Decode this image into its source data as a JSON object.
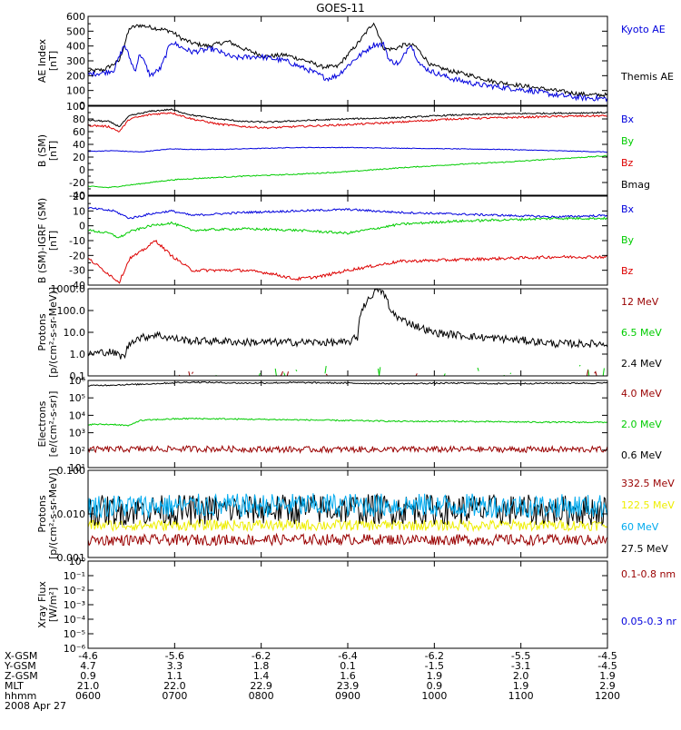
{
  "title": "GOES-11",
  "colors": {
    "black": "#000000",
    "blue": "#0000dd",
    "red": "#dd0000",
    "green": "#00cc00",
    "darkred": "#990000",
    "cyan": "#00aaee",
    "yellow": "#eeee00"
  },
  "chart_data": [
    {
      "type": "line",
      "ylabel": "AE Index\n[nT]",
      "ylim": [
        0,
        600
      ],
      "yticks": [
        0,
        100,
        200,
        300,
        400,
        500,
        600
      ],
      "yticklabels": [
        "0",
        "100",
        "200",
        "300",
        "400",
        "500",
        "600"
      ],
      "legend": [
        {
          "text": "Kyoto AE",
          "color": "blue"
        },
        {
          "text": "Themis AE",
          "color": "black"
        }
      ],
      "series": [
        {
          "name": "Themis AE",
          "color": "black",
          "noise": 14,
          "x": [
            0,
            3,
            6,
            8,
            10,
            13,
            16,
            18,
            20,
            23,
            27,
            30,
            34,
            38,
            42,
            45,
            48,
            52,
            55,
            57,
            59,
            61,
            63,
            66,
            70,
            74,
            78,
            82,
            86,
            90,
            94,
            97,
            100
          ],
          "y": [
            230,
            240,
            300,
            520,
            540,
            520,
            500,
            450,
            420,
            400,
            430,
            380,
            330,
            340,
            300,
            260,
            260,
            420,
            560,
            380,
            380,
            410,
            400,
            270,
            230,
            200,
            160,
            140,
            120,
            100,
            80,
            70,
            70
          ]
        },
        {
          "name": "Kyoto AE",
          "color": "blue",
          "noise": 18,
          "x": [
            0,
            3,
            5,
            7,
            9,
            10,
            12,
            14,
            16,
            18,
            20,
            24,
            28,
            33,
            38,
            43,
            46,
            48,
            51,
            55,
            57,
            58,
            60,
            62,
            64,
            66,
            70,
            75,
            80,
            85,
            90,
            95,
            100
          ],
          "y": [
            210,
            220,
            240,
            410,
            230,
            350,
            200,
            250,
            430,
            390,
            360,
            380,
            320,
            330,
            300,
            230,
            180,
            200,
            300,
            410,
            410,
            300,
            280,
            420,
            270,
            230,
            180,
            140,
            120,
            100,
            70,
            50,
            45
          ]
        }
      ]
    },
    {
      "type": "line",
      "ylabel": "B (SM)\n[nT]",
      "ylim": [
        -40,
        100
      ],
      "yticks": [
        -40,
        -20,
        0,
        20,
        40,
        60,
        80,
        100
      ],
      "yticklabels": [
        "-40",
        "-20",
        "0",
        "20",
        "40",
        "60",
        "80",
        "100"
      ],
      "legend": [
        {
          "text": "Bx",
          "color": "blue"
        },
        {
          "text": "By",
          "color": "green"
        },
        {
          "text": "Bz",
          "color": "red"
        },
        {
          "text": "Bmag",
          "color": "black"
        }
      ],
      "series": [
        {
          "name": "Bx",
          "color": "blue",
          "noise": 0.5,
          "x": [
            0,
            5,
            10,
            16,
            20,
            25,
            30,
            40,
            50,
            60,
            70,
            80,
            90,
            100
          ],
          "y": [
            29,
            30,
            28,
            33,
            32,
            32,
            33,
            35,
            35,
            34,
            33,
            32,
            30,
            28
          ]
        },
        {
          "name": "By",
          "color": "green",
          "noise": 0.8,
          "x": [
            0,
            4,
            8,
            12,
            16,
            20,
            30,
            40,
            50,
            60,
            70,
            80,
            90,
            100
          ],
          "y": [
            -26,
            -28,
            -24,
            -20,
            -16,
            -14,
            -10,
            -7,
            -3,
            3,
            8,
            12,
            17,
            22
          ]
        },
        {
          "name": "Bz",
          "color": "red",
          "noise": 1.5,
          "x": [
            0,
            4,
            6,
            8,
            12,
            16,
            20,
            25,
            30,
            35,
            40,
            50,
            60,
            70,
            80,
            90,
            100
          ],
          "y": [
            70,
            68,
            60,
            80,
            87,
            90,
            80,
            72,
            68,
            66,
            68,
            71,
            75,
            80,
            82,
            84,
            85
          ]
        },
        {
          "name": "Bmag",
          "color": "black",
          "noise": 1.2,
          "x": [
            0,
            4,
            6,
            8,
            12,
            16,
            20,
            25,
            30,
            35,
            40,
            50,
            60,
            70,
            80,
            90,
            100
          ],
          "y": [
            78,
            76,
            68,
            85,
            92,
            95,
            86,
            80,
            76,
            75,
            77,
            80,
            82,
            86,
            88,
            89,
            90
          ]
        }
      ]
    },
    {
      "type": "line",
      "ylabel": "B (SM)-IGRF (SM)\n[nT]",
      "ylim": [
        -40,
        20
      ],
      "yticks": [
        -40,
        -30,
        -20,
        -10,
        0,
        10,
        20
      ],
      "yticklabels": [
        "-40",
        "-30",
        "-20",
        "-10",
        "0",
        "10",
        "20"
      ],
      "legend": [
        {
          "text": "Bx",
          "color": "blue"
        },
        {
          "text": "By",
          "color": "green"
        },
        {
          "text": "Bz",
          "color": "red"
        }
      ],
      "series": [
        {
          "name": "Bx",
          "color": "blue",
          "noise": 0.7,
          "x": [
            0,
            5,
            8,
            12,
            16,
            20,
            30,
            40,
            50,
            55,
            60,
            70,
            80,
            90,
            100
          ],
          "y": [
            12,
            10,
            5,
            8,
            10,
            7,
            9,
            10,
            11,
            10,
            9,
            8,
            7,
            6,
            7
          ]
        },
        {
          "name": "By",
          "color": "green",
          "noise": 0.8,
          "x": [
            0,
            4,
            6,
            8,
            12,
            16,
            20,
            30,
            40,
            50,
            55,
            60,
            70,
            80,
            90,
            100
          ],
          "y": [
            -3,
            -5,
            -8,
            -4,
            0,
            2,
            -3,
            -2,
            -3,
            -5,
            -2,
            1,
            3,
            4,
            5,
            5
          ]
        },
        {
          "name": "Bz",
          "color": "red",
          "noise": 1.0,
          "x": [
            0,
            3,
            6,
            8,
            10,
            13,
            16,
            20,
            25,
            30,
            35,
            40,
            45,
            50,
            55,
            60,
            70,
            80,
            90,
            100
          ],
          "y": [
            -22,
            -30,
            -38,
            -22,
            -18,
            -10,
            -20,
            -30,
            -30,
            -30,
            -32,
            -36,
            -34,
            -30,
            -27,
            -24,
            -23,
            -22,
            -21,
            -21
          ]
        }
      ]
    },
    {
      "type": "line",
      "yscale": "log",
      "ylabel": "Protons\n[p/(cm²-s-sr-MeV)]",
      "ylim": [
        0.1,
        1000
      ],
      "yticks": [
        0.1,
        1,
        10,
        100,
        1000
      ],
      "yticklabels": [
        "0.1",
        "1.0",
        "10.0",
        "100.0",
        "1000.0"
      ],
      "legend": [
        {
          "text": "12 MeV",
          "color": "darkred"
        },
        {
          "text": "6.5 MeV",
          "color": "green"
        },
        {
          "text": "2.4 MeV",
          "color": "black"
        }
      ],
      "series": [
        {
          "name": "2.4 MeV",
          "color": "black",
          "noise": 0.35,
          "x": [
            0,
            4,
            7,
            9,
            11,
            13,
            15,
            17,
            20,
            25,
            30,
            35,
            40,
            45,
            50,
            52,
            54,
            56,
            58,
            60,
            63,
            66,
            70,
            75,
            80,
            85,
            90,
            95,
            100
          ],
          "y": [
            1,
            1.3,
            0.7,
            5,
            6,
            8,
            6,
            5,
            4,
            4,
            3.5,
            3.5,
            3.5,
            3.5,
            3.3,
            6,
            300,
            1000,
            100,
            40,
            20,
            10,
            8,
            6,
            5,
            4,
            3,
            3,
            3
          ]
        },
        {
          "name": "6.5 MeV",
          "color": "green",
          "noise": 0.9,
          "sparse": true,
          "x": [
            0,
            20,
            40,
            60,
            80,
            100
          ],
          "y": [
            0.14,
            0.14,
            0.13,
            0.15,
            0.14,
            0.13
          ]
        },
        {
          "name": "12 MeV",
          "color": "darkred",
          "noise": 0.5,
          "sparse": true,
          "x": [
            0,
            20,
            40,
            60,
            80,
            100
          ],
          "y": [
            0.11,
            0.11,
            0.11,
            0.11,
            0.11,
            0.11
          ]
        }
      ]
    },
    {
      "type": "line",
      "yscale": "log",
      "ylabel": "Electrons\n[e/(cm²-s-sr)]",
      "ylim": [
        10,
        1000000
      ],
      "yticks": [
        10,
        100,
        1000,
        10000,
        100000,
        1000000
      ],
      "yticklabels": [
        "10¹",
        "10²",
        "10³",
        "10⁴",
        "10⁵",
        "10⁶"
      ],
      "legend": [
        {
          "text": "4.0 MeV",
          "color": "darkred"
        },
        {
          "text": "2.0 MeV",
          "color": "green"
        },
        {
          "text": "0.6 MeV",
          "color": "black"
        }
      ],
      "series": [
        {
          "name": "0.6 MeV",
          "color": "black",
          "noise": 0.08,
          "x": [
            0,
            10,
            20,
            30,
            40,
            50,
            60,
            70,
            80,
            90,
            100
          ],
          "y": [
            500000,
            600000,
            800000,
            700000,
            750000,
            700000,
            650000,
            700000,
            650000,
            700000,
            700000
          ]
        },
        {
          "name": "2.0 MeV",
          "color": "green",
          "noise": 0.08,
          "x": [
            0,
            5,
            8,
            10,
            15,
            20,
            30,
            40,
            50,
            60,
            70,
            80,
            90,
            100
          ],
          "y": [
            3000,
            3000,
            2500,
            5000,
            6000,
            6500,
            6000,
            5500,
            5000,
            4500,
            4500,
            4200,
            4000,
            4000
          ]
        },
        {
          "name": "4.0 MeV",
          "color": "darkred",
          "noise": 0.35,
          "x": [
            0,
            20,
            40,
            60,
            80,
            100
          ],
          "y": [
            110,
            120,
            110,
            110,
            110,
            110
          ]
        }
      ]
    },
    {
      "type": "line",
      "yscale": "log",
      "ylabel": "Protons\n[p/(cm²-s-sr-MeV)]",
      "ylim": [
        0.001,
        0.1
      ],
      "yticks": [
        0.001,
        0.01,
        0.1
      ],
      "yticklabels": [
        "0.001",
        "0.010",
        "0.100"
      ],
      "legend": [
        {
          "text": "332.5 MeV",
          "color": "darkred"
        },
        {
          "text": "122.5 MeV",
          "color": "yellow"
        },
        {
          "text": "60 MeV",
          "color": "cyan"
        },
        {
          "text": "27.5 MeV",
          "color": "black"
        }
      ],
      "series": [
        {
          "name": "332.5 MeV",
          "color": "darkred",
          "noise": 0.25,
          "x": [
            0,
            50,
            100
          ],
          "y": [
            0.0025,
            0.0026,
            0.0025
          ]
        },
        {
          "name": "122.5 MeV",
          "color": "yellow",
          "noise": 0.25,
          "x": [
            0,
            50,
            100
          ],
          "y": [
            0.0055,
            0.0055,
            0.0055
          ]
        },
        {
          "name": "27.5 MeV",
          "color": "black",
          "noise": 0.7,
          "x": [
            0,
            50,
            100
          ],
          "y": [
            0.012,
            0.013,
            0.012
          ]
        },
        {
          "name": "60 MeV",
          "color": "cyan",
          "noise": 0.55,
          "x": [
            0,
            50,
            100
          ],
          "y": [
            0.015,
            0.016,
            0.015
          ]
        }
      ]
    },
    {
      "type": "line",
      "yscale": "log",
      "ylabel": "Xray Flux\n[W/m²]",
      "ylim": [
        1e-06,
        1
      ],
      "yticks": [
        1e-06,
        1e-05,
        0.0001,
        0.001,
        0.01,
        0.1,
        1
      ],
      "yticklabels": [
        "10⁻⁶",
        "10⁻⁵",
        "10⁻⁴",
        "10⁻³",
        "10⁻²",
        "10⁻¹",
        "10⁰"
      ],
      "legend": [
        {
          "text": "0.1-0.8 nm",
          "color": "darkred"
        },
        {
          "text": "0.05-0.3 nr",
          "color": "blue"
        }
      ],
      "series": []
    }
  ],
  "xaxis": {
    "rows": [
      {
        "label": "X-GSM",
        "values": [
          "-4.6",
          "-5.6",
          "-6.2",
          "-6.4",
          "-6.2",
          "-5.5",
          "-4.5"
        ]
      },
      {
        "label": "Y-GSM",
        "values": [
          "4.7",
          "3.3",
          "1.8",
          "0.1",
          "-1.5",
          "-3.1",
          "-4.5"
        ]
      },
      {
        "label": "Z-GSM",
        "values": [
          "0.9",
          "1.1",
          "1.4",
          "1.6",
          "1.9",
          "2.0",
          "1.9"
        ]
      },
      {
        "label": "MLT",
        "values": [
          "21.0",
          "22.0",
          "22.9",
          "23.9",
          "0.9",
          "1.9",
          "2.9"
        ]
      },
      {
        "label": "hhmm",
        "values": [
          "0600",
          "0700",
          "0800",
          "0900",
          "1000",
          "1100",
          "1200"
        ]
      }
    ],
    "date": "2008 Apr 27"
  }
}
